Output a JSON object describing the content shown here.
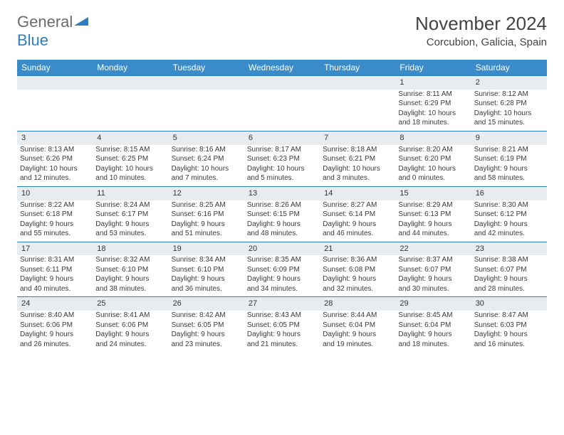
{
  "brand": {
    "part1": "General",
    "part2": "Blue"
  },
  "title": "November 2024",
  "location": "Corcubion, Galicia, Spain",
  "colors": {
    "header_bg": "#3a8bc9",
    "header_text": "#ffffff",
    "daynum_bg": "#e9ecef",
    "daynum_border": "#2d7fc1",
    "body_text": "#3a3a3a",
    "logo_gray": "#6b6b6b",
    "logo_blue": "#2d7fc1"
  },
  "weekdays": [
    "Sunday",
    "Monday",
    "Tuesday",
    "Wednesday",
    "Thursday",
    "Friday",
    "Saturday"
  ],
  "weeks": [
    {
      "nums": [
        "",
        "",
        "",
        "",
        "",
        "1",
        "2"
      ],
      "days": [
        null,
        null,
        null,
        null,
        null,
        {
          "sr": "Sunrise: 8:11 AM",
          "ss": "Sunset: 6:29 PM",
          "d1": "Daylight: 10 hours",
          "d2": "and 18 minutes."
        },
        {
          "sr": "Sunrise: 8:12 AM",
          "ss": "Sunset: 6:28 PM",
          "d1": "Daylight: 10 hours",
          "d2": "and 15 minutes."
        }
      ]
    },
    {
      "nums": [
        "3",
        "4",
        "5",
        "6",
        "7",
        "8",
        "9"
      ],
      "days": [
        {
          "sr": "Sunrise: 8:13 AM",
          "ss": "Sunset: 6:26 PM",
          "d1": "Daylight: 10 hours",
          "d2": "and 12 minutes."
        },
        {
          "sr": "Sunrise: 8:15 AM",
          "ss": "Sunset: 6:25 PM",
          "d1": "Daylight: 10 hours",
          "d2": "and 10 minutes."
        },
        {
          "sr": "Sunrise: 8:16 AM",
          "ss": "Sunset: 6:24 PM",
          "d1": "Daylight: 10 hours",
          "d2": "and 7 minutes."
        },
        {
          "sr": "Sunrise: 8:17 AM",
          "ss": "Sunset: 6:23 PM",
          "d1": "Daylight: 10 hours",
          "d2": "and 5 minutes."
        },
        {
          "sr": "Sunrise: 8:18 AM",
          "ss": "Sunset: 6:21 PM",
          "d1": "Daylight: 10 hours",
          "d2": "and 3 minutes."
        },
        {
          "sr": "Sunrise: 8:20 AM",
          "ss": "Sunset: 6:20 PM",
          "d1": "Daylight: 10 hours",
          "d2": "and 0 minutes."
        },
        {
          "sr": "Sunrise: 8:21 AM",
          "ss": "Sunset: 6:19 PM",
          "d1": "Daylight: 9 hours",
          "d2": "and 58 minutes."
        }
      ]
    },
    {
      "nums": [
        "10",
        "11",
        "12",
        "13",
        "14",
        "15",
        "16"
      ],
      "days": [
        {
          "sr": "Sunrise: 8:22 AM",
          "ss": "Sunset: 6:18 PM",
          "d1": "Daylight: 9 hours",
          "d2": "and 55 minutes."
        },
        {
          "sr": "Sunrise: 8:24 AM",
          "ss": "Sunset: 6:17 PM",
          "d1": "Daylight: 9 hours",
          "d2": "and 53 minutes."
        },
        {
          "sr": "Sunrise: 8:25 AM",
          "ss": "Sunset: 6:16 PM",
          "d1": "Daylight: 9 hours",
          "d2": "and 51 minutes."
        },
        {
          "sr": "Sunrise: 8:26 AM",
          "ss": "Sunset: 6:15 PM",
          "d1": "Daylight: 9 hours",
          "d2": "and 48 minutes."
        },
        {
          "sr": "Sunrise: 8:27 AM",
          "ss": "Sunset: 6:14 PM",
          "d1": "Daylight: 9 hours",
          "d2": "and 46 minutes."
        },
        {
          "sr": "Sunrise: 8:29 AM",
          "ss": "Sunset: 6:13 PM",
          "d1": "Daylight: 9 hours",
          "d2": "and 44 minutes."
        },
        {
          "sr": "Sunrise: 8:30 AM",
          "ss": "Sunset: 6:12 PM",
          "d1": "Daylight: 9 hours",
          "d2": "and 42 minutes."
        }
      ]
    },
    {
      "nums": [
        "17",
        "18",
        "19",
        "20",
        "21",
        "22",
        "23"
      ],
      "days": [
        {
          "sr": "Sunrise: 8:31 AM",
          "ss": "Sunset: 6:11 PM",
          "d1": "Daylight: 9 hours",
          "d2": "and 40 minutes."
        },
        {
          "sr": "Sunrise: 8:32 AM",
          "ss": "Sunset: 6:10 PM",
          "d1": "Daylight: 9 hours",
          "d2": "and 38 minutes."
        },
        {
          "sr": "Sunrise: 8:34 AM",
          "ss": "Sunset: 6:10 PM",
          "d1": "Daylight: 9 hours",
          "d2": "and 36 minutes."
        },
        {
          "sr": "Sunrise: 8:35 AM",
          "ss": "Sunset: 6:09 PM",
          "d1": "Daylight: 9 hours",
          "d2": "and 34 minutes."
        },
        {
          "sr": "Sunrise: 8:36 AM",
          "ss": "Sunset: 6:08 PM",
          "d1": "Daylight: 9 hours",
          "d2": "and 32 minutes."
        },
        {
          "sr": "Sunrise: 8:37 AM",
          "ss": "Sunset: 6:07 PM",
          "d1": "Daylight: 9 hours",
          "d2": "and 30 minutes."
        },
        {
          "sr": "Sunrise: 8:38 AM",
          "ss": "Sunset: 6:07 PM",
          "d1": "Daylight: 9 hours",
          "d2": "and 28 minutes."
        }
      ]
    },
    {
      "nums": [
        "24",
        "25",
        "26",
        "27",
        "28",
        "29",
        "30"
      ],
      "days": [
        {
          "sr": "Sunrise: 8:40 AM",
          "ss": "Sunset: 6:06 PM",
          "d1": "Daylight: 9 hours",
          "d2": "and 26 minutes."
        },
        {
          "sr": "Sunrise: 8:41 AM",
          "ss": "Sunset: 6:06 PM",
          "d1": "Daylight: 9 hours",
          "d2": "and 24 minutes."
        },
        {
          "sr": "Sunrise: 8:42 AM",
          "ss": "Sunset: 6:05 PM",
          "d1": "Daylight: 9 hours",
          "d2": "and 23 minutes."
        },
        {
          "sr": "Sunrise: 8:43 AM",
          "ss": "Sunset: 6:05 PM",
          "d1": "Daylight: 9 hours",
          "d2": "and 21 minutes."
        },
        {
          "sr": "Sunrise: 8:44 AM",
          "ss": "Sunset: 6:04 PM",
          "d1": "Daylight: 9 hours",
          "d2": "and 19 minutes."
        },
        {
          "sr": "Sunrise: 8:45 AM",
          "ss": "Sunset: 6:04 PM",
          "d1": "Daylight: 9 hours",
          "d2": "and 18 minutes."
        },
        {
          "sr": "Sunrise: 8:47 AM",
          "ss": "Sunset: 6:03 PM",
          "d1": "Daylight: 9 hours",
          "d2": "and 16 minutes."
        }
      ]
    }
  ]
}
